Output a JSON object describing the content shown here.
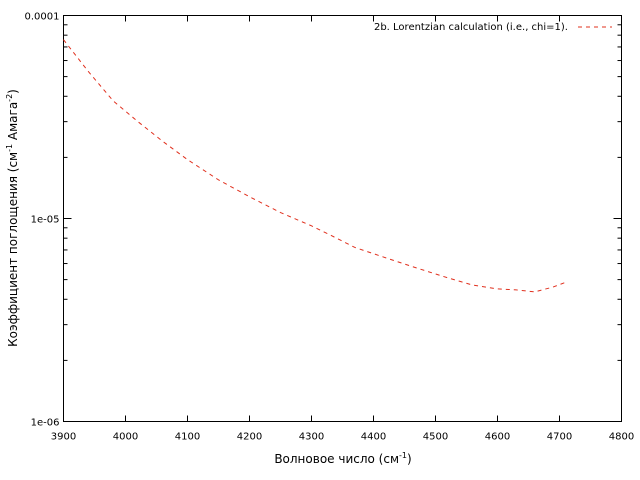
{
  "chart_data": {
    "type": "line",
    "title": "",
    "xlabel": {
      "base": "Волновое число (см",
      "sup": "-1",
      "tail": ")"
    },
    "ylabel": {
      "p1": "Коэффициент поглощения (см",
      "sup1": "-1",
      "p2": " Амага",
      "sup2": "-2",
      "p3": ")"
    },
    "xlim": [
      3900,
      4800
    ],
    "ylim": [
      1e-06,
      0.0001
    ],
    "yscale": "log",
    "x_ticks": [
      3900,
      4000,
      4100,
      4200,
      4300,
      4400,
      4500,
      4600,
      4700,
      4800
    ],
    "x_tick_labels": [
      "3900",
      "4000",
      "4100",
      "4200",
      "4300",
      "4400",
      "4500",
      "4600",
      "4700",
      "4800"
    ],
    "y_ticks": [
      1e-06,
      1e-05,
      0.0001
    ],
    "y_tick_labels": [
      "1e-06",
      "1e-05",
      "0.0001"
    ],
    "legend_position": "top-right",
    "grid": false,
    "series": [
      {
        "name": "2b. Lorentzian calculation (i.e., chi=1).",
        "color": "#e0301e",
        "style": "dashed",
        "x": [
          3900,
          3940,
          3980,
          4020,
          4060,
          4100,
          4150,
          4200,
          4250,
          4300,
          4330,
          4370,
          4420,
          4470,
          4520,
          4560,
          4600,
          4630,
          4660,
          4690,
          4710
        ],
        "y": [
          7.6e-05,
          5.3e-05,
          3.8e-05,
          3e-05,
          2.4e-05,
          1.95e-05,
          1.55e-05,
          1.28e-05,
          1.07e-05,
          9.2e-06,
          8.3e-06,
          7.2e-06,
          6.4e-06,
          5.7e-06,
          5.1e-06,
          4.7e-06,
          4.5e-06,
          4.45e-06,
          4.35e-06,
          4.6e-06,
          4.85e-06
        ]
      }
    ]
  }
}
